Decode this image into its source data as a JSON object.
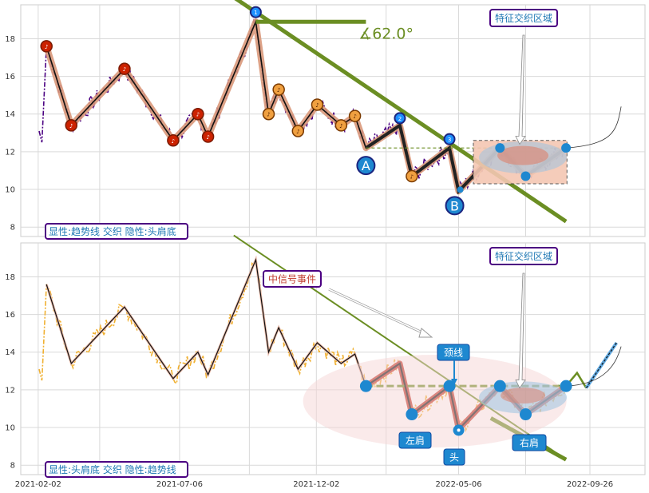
{
  "chart_data": [
    {
      "type": "line",
      "title": "",
      "xlabel": "",
      "ylabel": "",
      "ylim": [
        7.5,
        19.8
      ],
      "yticks": [
        8,
        10,
        12,
        14,
        16,
        18
      ],
      "grid": true,
      "corner_label": "显性:趋势线 交织 隐性:头肩底",
      "region_label": "特征交织区域",
      "angle_label": "∡62.0°",
      "point_labels": {
        "A": "A",
        "B": "B"
      },
      "zigzag": [
        [
          "2021-02-11",
          17.6
        ],
        [
          "2021-03-10",
          13.4
        ],
        [
          "2021-05-07",
          16.4
        ],
        [
          "2021-06-29",
          12.6
        ],
        [
          "2021-07-26",
          14.0
        ],
        [
          "2021-08-06",
          12.8
        ],
        [
          "2021-09-27",
          18.9
        ],
        [
          "2021-10-11",
          14.0
        ],
        [
          "2021-10-22",
          15.3
        ],
        [
          "2021-11-12",
          13.1
        ],
        [
          "2021-12-03",
          14.5
        ],
        [
          "2021-12-29",
          13.4
        ],
        [
          "2022-01-13",
          13.9
        ],
        [
          "2022-01-25",
          12.2
        ],
        [
          "2022-03-03",
          13.4
        ],
        [
          "2022-03-16",
          10.7
        ],
        [
          "2022-04-26",
          12.2
        ],
        [
          "2022-05-06",
          9.9
        ],
        [
          "2022-06-20",
          12.2
        ],
        [
          "2022-07-18",
          10.7
        ],
        [
          "2022-08-31",
          12.2
        ]
      ],
      "trend_line": [
        [
          "2021-09-03",
          20.2
        ],
        [
          "2022-08-31",
          8.3
        ]
      ],
      "top_line": [
        [
          "2021-09-27",
          18.9
        ],
        [
          "2022-01-25",
          18.9
        ]
      ],
      "neckline": [
        [
          "2022-01-25",
          12.2
        ],
        [
          "2022-08-31",
          12.2
        ]
      ]
    },
    {
      "type": "line",
      "title": "",
      "xlabel": "",
      "ylabel": "",
      "ylim": [
        7.5,
        19.8
      ],
      "yticks": [
        8,
        10,
        12,
        14,
        16,
        18
      ],
      "xticks": [
        "2021-02-02",
        "2021-07-06",
        "2021-12-02",
        "2022-05-06",
        "2022-09-26"
      ],
      "grid": true,
      "corner_label": "显性:头肩底 交织 隐性:趋势线",
      "region_label": "特征交织区域",
      "event_label": "中信号事件",
      "pattern_labels": {
        "neck": "颈线",
        "left_shoulder": "左肩",
        "head": "头",
        "right_shoulder": "右肩"
      },
      "zigzag": [
        [
          "2021-02-11",
          17.6
        ],
        [
          "2021-03-10",
          13.4
        ],
        [
          "2021-05-07",
          16.4
        ],
        [
          "2021-06-29",
          12.6
        ],
        [
          "2021-07-26",
          14.0
        ],
        [
          "2021-08-06",
          12.8
        ],
        [
          "2021-09-27",
          18.9
        ],
        [
          "2021-10-11",
          14.0
        ],
        [
          "2021-10-22",
          15.3
        ],
        [
          "2021-11-12",
          13.1
        ],
        [
          "2021-12-03",
          14.5
        ],
        [
          "2021-12-29",
          13.4
        ],
        [
          "2022-01-13",
          13.9
        ],
        [
          "2022-01-25",
          12.2
        ],
        [
          "2022-03-03",
          13.4
        ],
        [
          "2022-03-16",
          10.7
        ],
        [
          "2022-04-26",
          12.2
        ],
        [
          "2022-05-06",
          9.9
        ],
        [
          "2022-06-20",
          12.2
        ],
        [
          "2022-07-18",
          10.7
        ],
        [
          "2022-08-31",
          12.2
        ]
      ],
      "trend_line": [
        [
          "2021-09-03",
          20.2
        ],
        [
          "2022-08-31",
          8.3
        ]
      ],
      "neckline": [
        [
          "2022-01-25",
          12.2
        ],
        [
          "2022-08-31",
          12.2
        ]
      ]
    }
  ]
}
